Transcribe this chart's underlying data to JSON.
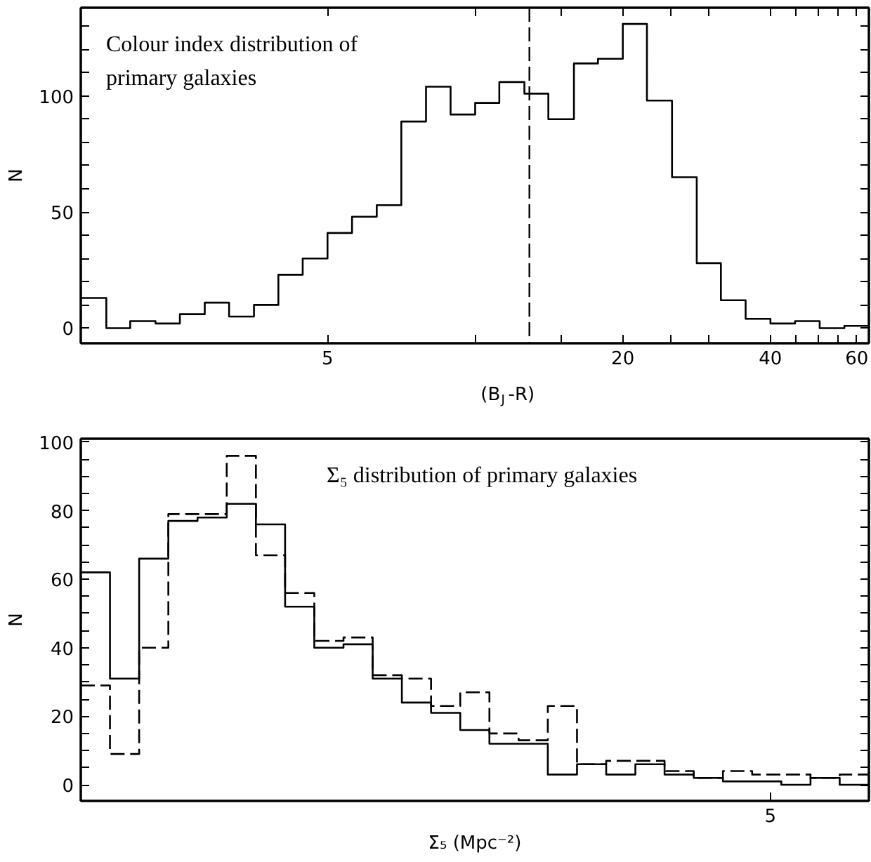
{
  "chart_data": [
    {
      "type": "histogram",
      "title": "Colour index distribution of\nprimary galaxies",
      "xlabel": "(B$_{J}$-R)",
      "ylabel": "N",
      "log": "x",
      "bins": [
        1.57,
        1.77,
        1.98,
        2.23,
        2.5,
        2.81,
        3.15,
        3.54,
        3.97,
        4.45,
        5,
        5.61,
        6.3,
        7.07,
        7.94,
        8.91,
        10,
        11.2,
        12.6,
        14.1,
        15.9,
        17.8,
        20,
        22.4,
        25.2,
        28.3,
        31.7,
        35.6,
        40,
        44.9,
        50.4,
        56.6,
        63.5
      ],
      "values": [
        13,
        0,
        3,
        2,
        6,
        11,
        5,
        10,
        23,
        30,
        41,
        48,
        53,
        89,
        104,
        92,
        97,
        106,
        101,
        90,
        114,
        116,
        131,
        98,
        65,
        28,
        12,
        4,
        2,
        3,
        0,
        1
      ],
      "color": "#000000",
      "line_style": "solid",
      "xlim": [
        1.57,
        63.5
      ],
      "ylim": [
        -6.5,
        138
      ],
      "xticks": [
        5,
        {
          "value": 10,
          "label": null
        },
        {
          "value": 15,
          "label": null
        },
        20,
        {
          "value": 25,
          "label": null
        },
        {
          "value": 30,
          "label": null
        },
        40,
        {
          "value": 45,
          "label": null
        },
        {
          "value": 50,
          "label": null
        },
        {
          "value": 55,
          "label": null
        },
        60
      ],
      "yticks": [
        0,
        {
          "value": 10,
          "label": null
        },
        {
          "value": 20,
          "label": null
        },
        {
          "value": 30,
          "label": null
        },
        {
          "value": 40,
          "label": null
        },
        50,
        {
          "value": 60,
          "label": null
        },
        {
          "value": 70,
          "label": null
        },
        {
          "value": 80,
          "label": null
        },
        {
          "value": 90,
          "label": null
        },
        100,
        {
          "value": 110,
          "label": null
        },
        {
          "value": 120,
          "label": null
        },
        {
          "value": 130,
          "label": null
        }
      ],
      "ref_lines": [
        {
          "axis": "x",
          "value": 12.9,
          "color": "#000000",
          "line_style": "dashed"
        }
      ],
      "grid": false
    },
    {
      "type": "step",
      "title": "Σ₅ distribution of primary galaxies",
      "xlabel": "Σ₅ (Mpc⁻²)",
      "ylabel": "N",
      "categories": [
        null,
        null,
        null,
        null,
        null,
        null,
        null,
        null,
        null,
        null,
        null,
        null,
        null,
        null,
        null,
        null,
        null,
        null,
        null,
        null,
        null,
        null,
        null,
        null,
        null,
        null,
        null,
        null
      ],
      "series": [
        {
          "color": "#000000",
          "line_style": "solid",
          "values": [
            62,
            31,
            66,
            77,
            78,
            82,
            76,
            52,
            40,
            41,
            31,
            24,
            21,
            16,
            12,
            12,
            3,
            6,
            3,
            6,
            3,
            2,
            1,
            1,
            0,
            2,
            0,
            0
          ]
        },
        {
          "color": "#000000",
          "line_style": "dashed",
          "values": [
            29,
            9,
            40,
            79,
            79,
            96,
            67,
            56,
            42,
            43,
            32,
            31,
            23,
            27,
            15,
            13,
            23,
            6,
            7,
            7,
            4,
            2,
            4,
            3,
            3,
            2,
            3,
            0
          ]
        }
      ],
      "annotations": [
        "5"
      ],
      "ylim": [
        -4.7,
        101
      ],
      "yticks": [
        0,
        {
          "value": 5,
          "label": null
        },
        {
          "value": 10,
          "label": null
        },
        {
          "value": 15,
          "label": null
        },
        20,
        {
          "value": 25,
          "label": null
        },
        {
          "value": 30,
          "label": null
        },
        {
          "value": 35,
          "label": null
        },
        40,
        {
          "value": 45,
          "label": null
        },
        {
          "value": 50,
          "label": null
        },
        {
          "value": 55,
          "label": null
        },
        60,
        {
          "value": 65,
          "label": null
        },
        {
          "value": 70,
          "label": null
        },
        {
          "value": 75,
          "label": null
        },
        80,
        {
          "value": 85,
          "label": null
        },
        {
          "value": 90,
          "label": null
        },
        {
          "value": 95,
          "label": null
        },
        100
      ],
      "grid": false
    }
  ]
}
